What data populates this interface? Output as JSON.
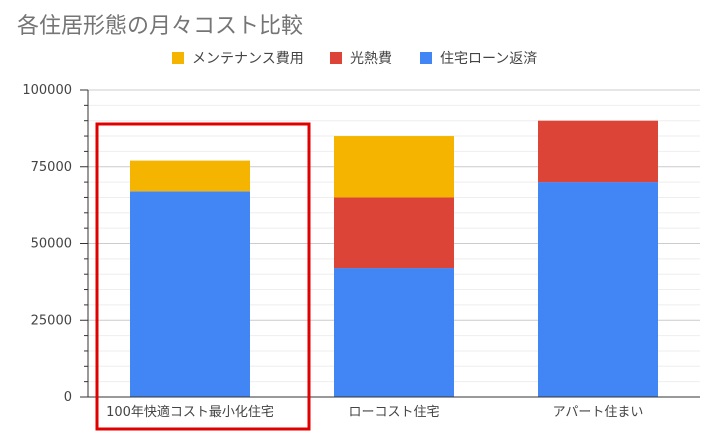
{
  "chart_data": {
    "type": "bar",
    "stacked": true,
    "title": "各住居形態の月々コスト比較",
    "categories": [
      "100年快適コスト最小化住宅",
      "ローコスト住宅",
      "アパート住まい"
    ],
    "series": [
      {
        "name": "住宅ローン返済",
        "color": "#4285F4",
        "values": [
          67000,
          42000,
          70000
        ]
      },
      {
        "name": "光熱費",
        "color": "#DB4437",
        "values": [
          0,
          23000,
          20000
        ]
      },
      {
        "name": "メンテナンス費用",
        "color": "#F4B400",
        "values": [
          10000,
          20000,
          0
        ]
      }
    ],
    "legend_order": [
      "メンテナンス費用",
      "光熱費",
      "住宅ローン返済"
    ],
    "yticks": [
      0,
      25000,
      50000,
      75000,
      100000
    ],
    "ylim": [
      0,
      100000
    ],
    "grid": true,
    "legend_position": "top",
    "highlight_category_index": 0,
    "highlight_color": "#E00000"
  }
}
